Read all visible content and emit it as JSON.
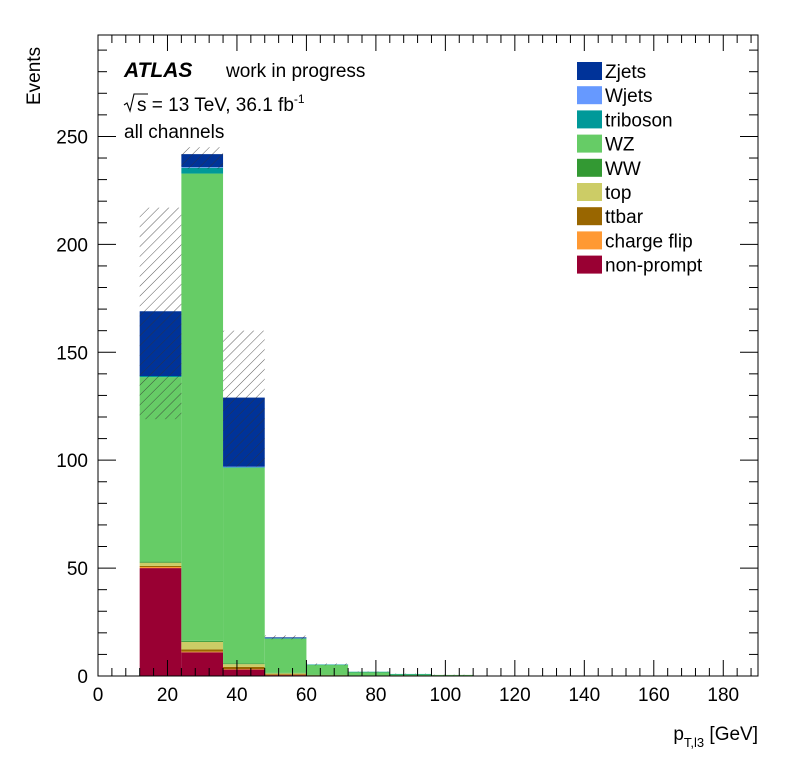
{
  "chart_data": {
    "type": "bar",
    "stacked": true,
    "title": "",
    "experiment": "ATLAS",
    "status_label": "work in progress",
    "energy_label_prefix": "s",
    "energy_label_rest": " = 13 TeV, 36.1 fb",
    "energy_label_sup": "-1",
    "channel_label": "all channels",
    "xlabel_main": "p",
    "xlabel_sub": "T,l3",
    "xlabel_unit": " [GeV]",
    "ylabel": "Events",
    "xlim": [
      0,
      190
    ],
    "ylim": [
      0,
      297
    ],
    "xticks": [
      0,
      20,
      40,
      60,
      80,
      100,
      120,
      140,
      160,
      180
    ],
    "xtick_labels": [
      "0",
      "20",
      "40",
      "60",
      "80",
      "100",
      "120",
      "140",
      "160",
      "180"
    ],
    "yticks": [
      0,
      50,
      100,
      150,
      200,
      250
    ],
    "ytick_labels": [
      "0",
      "50",
      "100",
      "150",
      "200",
      "250"
    ],
    "bin_edges": [
      12,
      24,
      36,
      48,
      60,
      72,
      84,
      96,
      108
    ],
    "series": [
      {
        "name": "non-prompt",
        "color": "#990033",
        "values": [
          50,
          11,
          3,
          0.5,
          0.3,
          0.1,
          0.05,
          0
        ]
      },
      {
        "name": "charge flip",
        "color": "#ff9933",
        "values": [
          0.5,
          0.3,
          0.2,
          0.1,
          0,
          0,
          0,
          0
        ]
      },
      {
        "name": "ttbar",
        "color": "#996600",
        "values": [
          0.5,
          1,
          1,
          0.3,
          0.1,
          0,
          0,
          0
        ]
      },
      {
        "name": "top",
        "color": "#cccc66",
        "values": [
          1.5,
          3.5,
          1.3,
          0.4,
          0.1,
          0,
          0,
          0
        ]
      },
      {
        "name": "WW",
        "color": "#339933",
        "values": [
          0.5,
          0.5,
          0.4,
          0.2,
          0.1,
          0,
          0,
          0
        ]
      },
      {
        "name": "WZ",
        "color": "#66cc66",
        "values": [
          85.5,
          216.5,
          90.6,
          15.8,
          4.6,
          1.8,
          0.85,
          0.5
        ]
      },
      {
        "name": "triboson",
        "color": "#009999",
        "values": [
          0.5,
          2.7,
          0.3,
          0.2,
          0.1,
          0.05,
          0.05,
          0
        ]
      },
      {
        "name": "Wjets",
        "color": "#6699ff",
        "values": [
          0,
          0.3,
          0.2,
          0,
          0,
          0,
          0,
          0
        ]
      },
      {
        "name": "Zjets",
        "color": "#003399",
        "values": [
          30,
          6,
          32,
          0.4,
          0,
          0,
          0,
          0
        ]
      }
    ],
    "uncertainty": {
      "style": "hatched",
      "down": [
        119,
        235,
        97,
        17,
        4.9,
        1.9,
        0.9,
        0.4
      ],
      "up": [
        217,
        245,
        160,
        18.8,
        5.8,
        2.1,
        1.1,
        0.6
      ]
    },
    "legend": {
      "placement": "top-right",
      "entries": [
        "Zjets",
        "Wjets",
        "triboson",
        "WZ",
        "WW",
        "top",
        "ttbar",
        "charge flip",
        "non-prompt"
      ]
    }
  }
}
